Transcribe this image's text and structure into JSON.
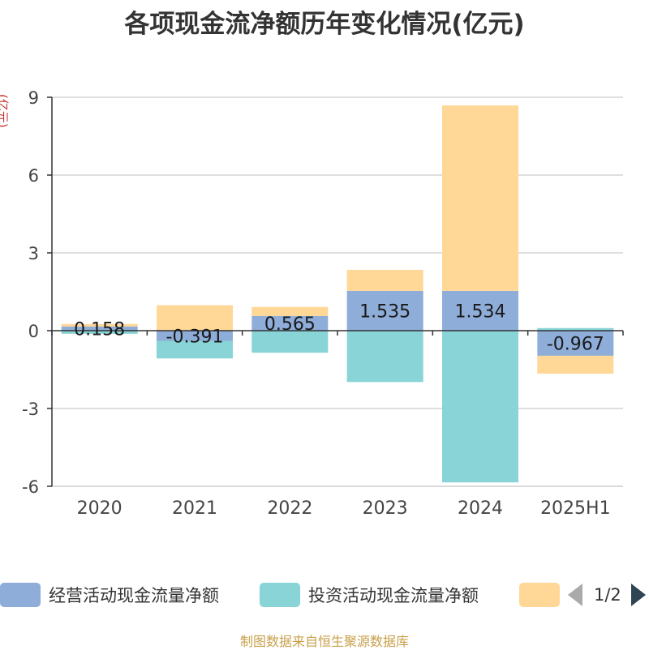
{
  "title": "各项现金流净额历年变化情况(亿元)",
  "unit_label": "(亿元)",
  "source": "制图数据来自恒生聚源数据库",
  "legend": {
    "items": [
      {
        "label": "经营活动现金流量净额",
        "color": "#8eadd9"
      },
      {
        "label": "投资活动现金流量净额",
        "color": "#88d4d7"
      },
      {
        "label": "",
        "color": "#ffd797"
      }
    ],
    "page": "1/2"
  },
  "chart_data": {
    "type": "bar",
    "stacked": true,
    "categories": [
      "2020",
      "2021",
      "2022",
      "2023",
      "2024",
      "2025H1"
    ],
    "series": [
      {
        "name": "经营活动现金流量净额",
        "color": "#8eadd9",
        "values": [
          0.158,
          -0.391,
          0.565,
          1.535,
          1.534,
          -0.967
        ],
        "labels": [
          "0.158",
          "-0.391",
          "0.565",
          "1.535",
          "1.534",
          "-0.967"
        ]
      },
      {
        "name": "投资活动现金流量净额",
        "color": "#88d4d7",
        "values": [
          -0.12,
          -0.68,
          -0.85,
          -1.98,
          -5.85,
          0.1
        ]
      },
      {
        "name": "",
        "color": "#ffd797",
        "values": [
          0.1,
          0.98,
          0.35,
          0.81,
          7.15,
          -0.69
        ]
      }
    ],
    "yticks": [
      9,
      6,
      3,
      0,
      -3,
      -6
    ],
    "ylim": [
      -6,
      9
    ]
  }
}
